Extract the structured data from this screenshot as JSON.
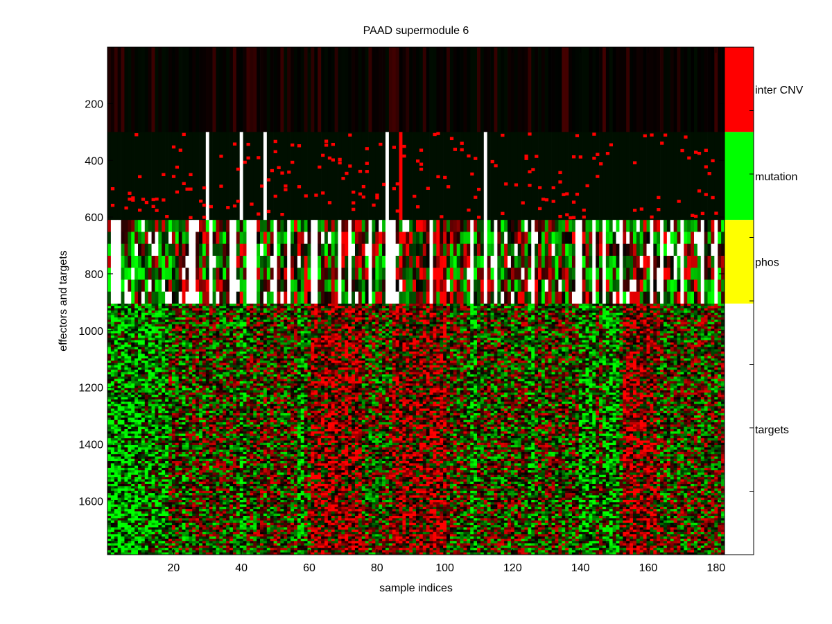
{
  "chart_data": {
    "type": "heatmap",
    "title": "PAAD supermodule 6",
    "xlabel": "sample indices",
    "ylabel": "effectors and targets",
    "x_ticks": [
      20,
      40,
      60,
      80,
      100,
      120,
      140,
      160,
      180
    ],
    "y_ticks": [
      200,
      400,
      600,
      800,
      1000,
      1200,
      1400,
      1600
    ],
    "xlim": [
      0.5,
      182.5
    ],
    "ylim": [
      1,
      1790
    ],
    "colormap": [
      "#00ff00",
      "#000000",
      "#ff0000"
    ],
    "missing_color": "#ffffff",
    "blocks": [
      {
        "name": "inter CNV",
        "rows": [
          1,
          300
        ],
        "color": "#ff0000"
      },
      {
        "name": "mutation",
        "rows": [
          300,
          610
        ],
        "color": "#00ff00"
      },
      {
        "name": "phos",
        "rows": [
          610,
          905
        ],
        "color": "#ffff00"
      },
      {
        "name": "targets",
        "rows": [
          905,
          1790
        ],
        "color": "#ffffff"
      }
    ],
    "observed_patterns": {
      "mutation_full_columns": [
        87
      ],
      "mutation_missing_columns": [
        30,
        40,
        47,
        83,
        112
      ],
      "phos_missing_columns": [
        2,
        3,
        4,
        25,
        26,
        31,
        37,
        38,
        42,
        43,
        44,
        50,
        54,
        61,
        62,
        69,
        72,
        78,
        83,
        84,
        85,
        96,
        108,
        112,
        115,
        126,
        139,
        140,
        144,
        147,
        152,
        161,
        164,
        170,
        176,
        180
      ],
      "target_green_columns": [
        1,
        2,
        3,
        4,
        5,
        6,
        7,
        8,
        9,
        10,
        11,
        12,
        13,
        14,
        15,
        16,
        17,
        18,
        23,
        40,
        41,
        57,
        58,
        108,
        109,
        125,
        126,
        140,
        141,
        142,
        143,
        144,
        147,
        148,
        149,
        150,
        151
      ],
      "target_red_columns": [
        61,
        62,
        63,
        64,
        65,
        66,
        67,
        68,
        69,
        70,
        71,
        72,
        73,
        74,
        75,
        85,
        86,
        87,
        88,
        89,
        90,
        91,
        92,
        93,
        94,
        95,
        96,
        97,
        98,
        99,
        100,
        153,
        154,
        155,
        156,
        157,
        158,
        159,
        160,
        161,
        162
      ]
    }
  }
}
